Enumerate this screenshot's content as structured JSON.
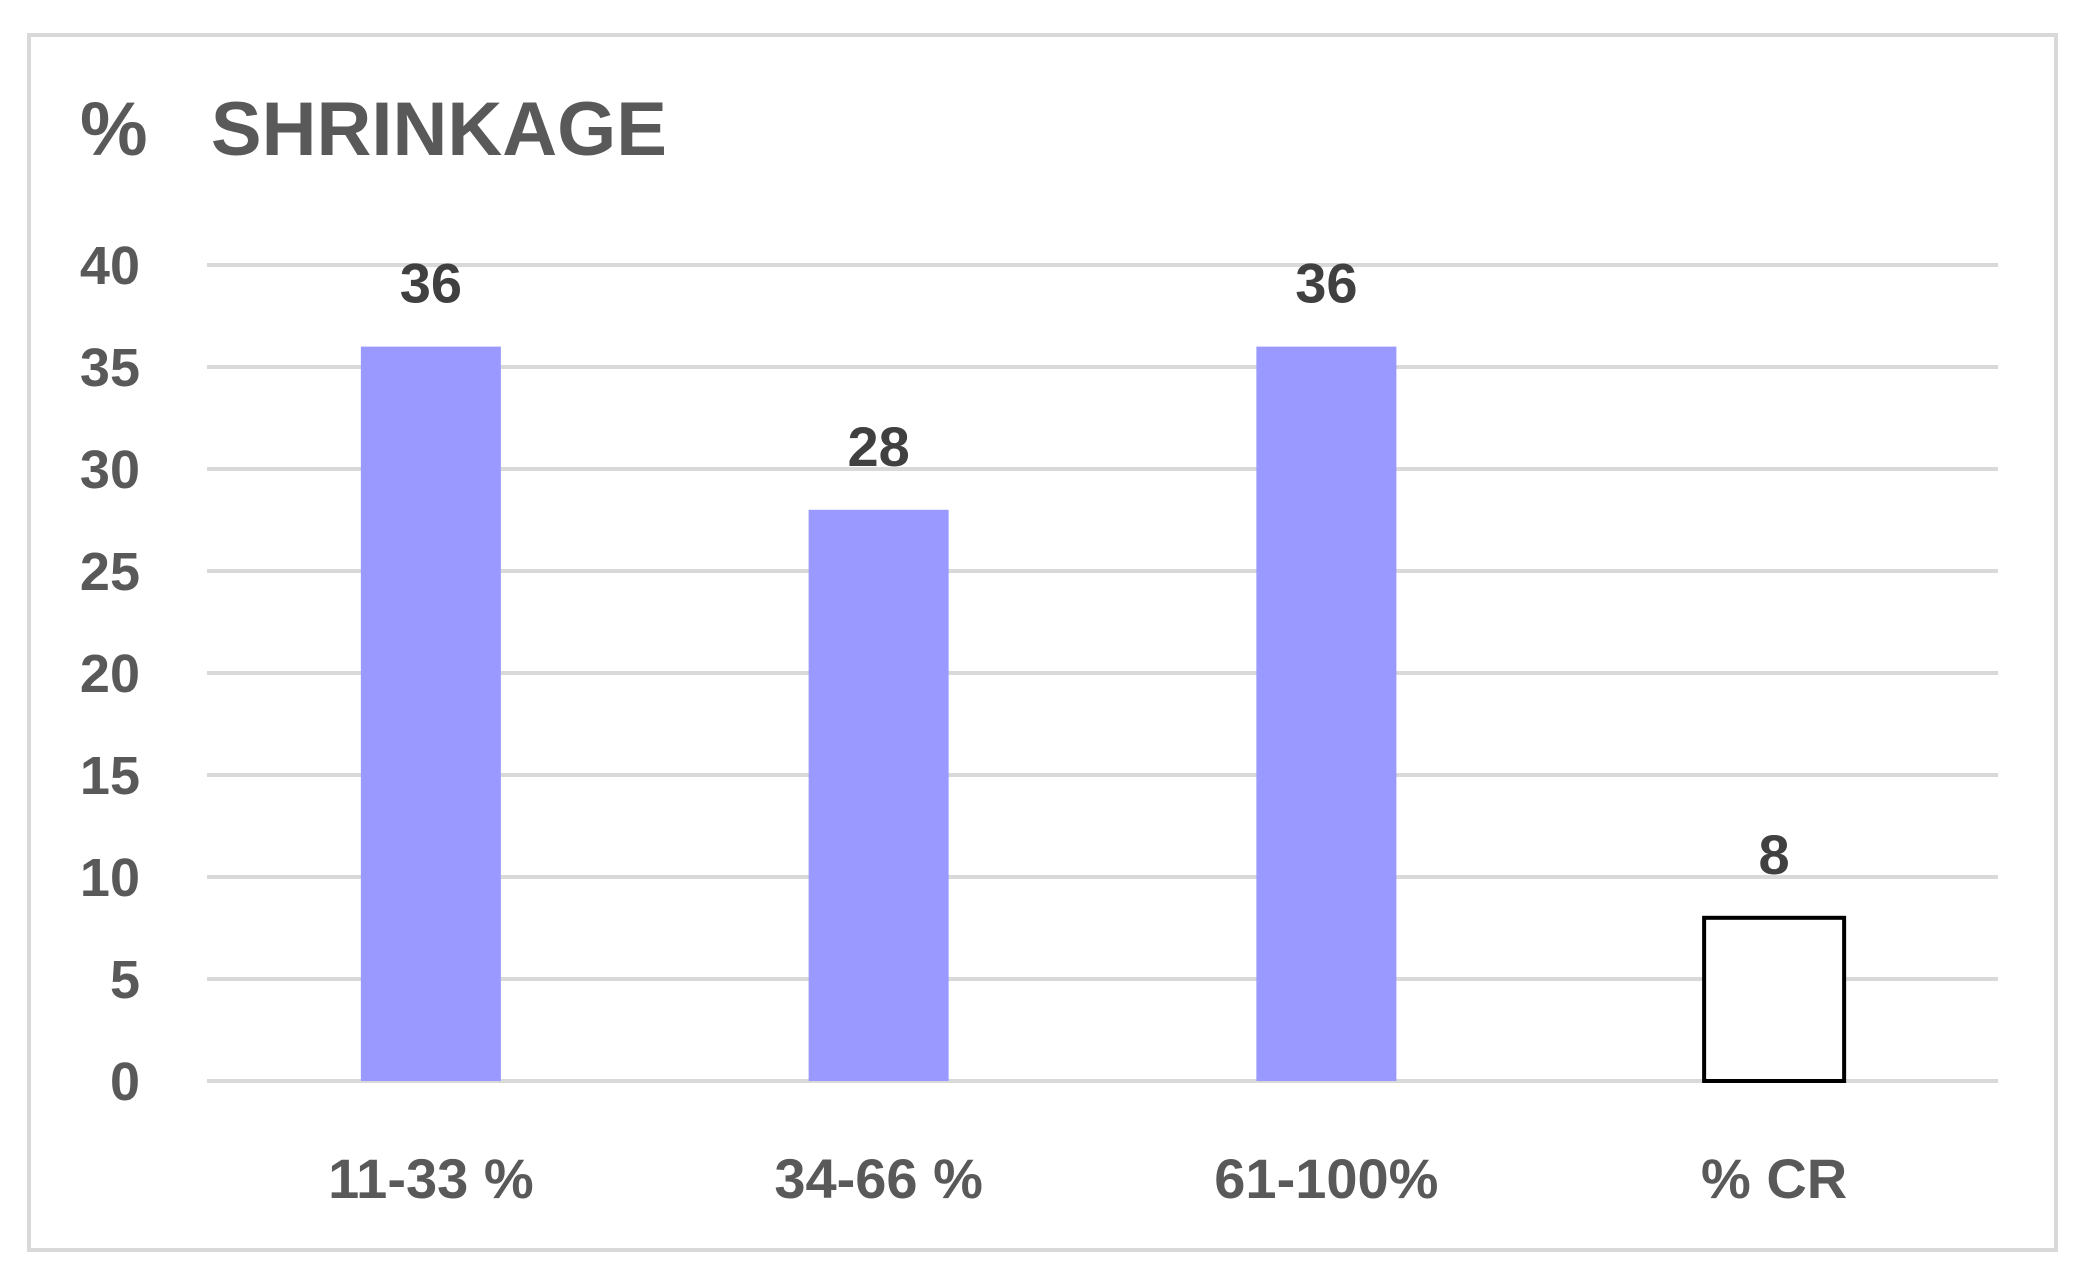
{
  "chart_data": {
    "type": "bar",
    "title": "%   SHRINKAGE",
    "xlabel": "",
    "ylabel": "",
    "categories": [
      "11-33 %",
      "34-66 %",
      "61-100%",
      "% CR"
    ],
    "values": [
      36,
      28,
      36,
      8
    ],
    "data_labels": [
      "36",
      "28",
      "36",
      "8"
    ],
    "ylim": [
      0,
      40
    ],
    "yticks": [
      0,
      5,
      10,
      15,
      20,
      25,
      30,
      35,
      40
    ],
    "grid": true,
    "legend": "none",
    "bar_styles": [
      {
        "fill": "#9999ff",
        "stroke": "none"
      },
      {
        "fill": "#9999ff",
        "stroke": "none"
      },
      {
        "fill": "#9999ff",
        "stroke": "none"
      },
      {
        "fill": "#ffffff",
        "stroke": "#000000"
      }
    ],
    "colors": {
      "bar": "#9999ff",
      "gridline": "#d9d9d9",
      "text": "#595959",
      "data_label": "#404040"
    }
  }
}
